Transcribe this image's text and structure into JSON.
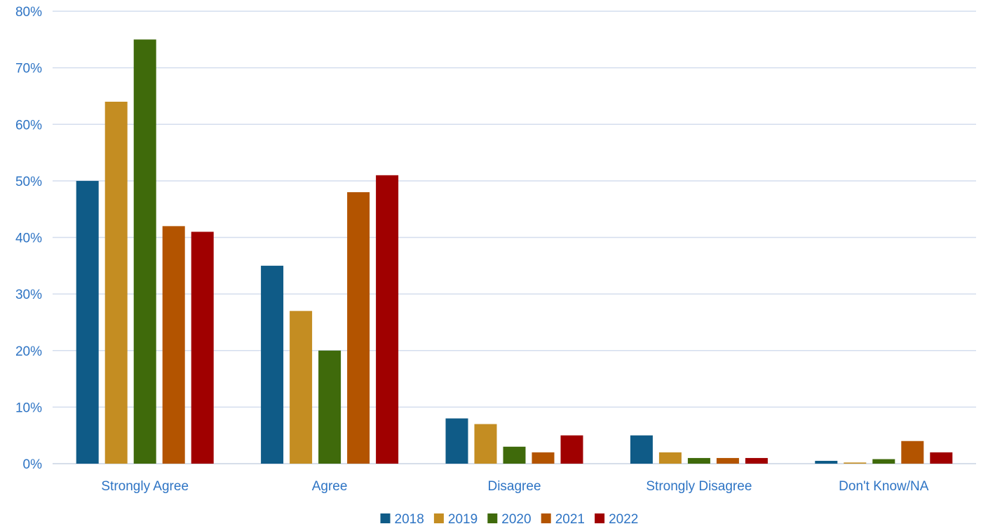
{
  "chart_data": {
    "type": "bar",
    "title": "",
    "xlabel": "",
    "ylabel": "",
    "categories": [
      "Strongly Agree",
      "Agree",
      "Disagree",
      "Strongly Disagree",
      "Don't Know/NA"
    ],
    "series": [
      {
        "name": "2018",
        "color": "#0f5b87",
        "values": [
          50,
          35,
          8,
          5,
          0.5
        ]
      },
      {
        "name": "2019",
        "color": "#c48d22",
        "values": [
          64,
          27,
          7,
          2,
          0.2
        ]
      },
      {
        "name": "2020",
        "color": "#3f6a0b",
        "values": [
          75,
          20,
          3,
          1,
          0.8
        ]
      },
      {
        "name": "2021",
        "color": "#b35400",
        "values": [
          42,
          48,
          2,
          1,
          4
        ]
      },
      {
        "name": "2022",
        "color": "#a00000",
        "values": [
          41,
          51,
          5,
          1,
          2
        ]
      }
    ],
    "ylim": [
      0,
      80
    ],
    "yticks": [
      0,
      10,
      20,
      30,
      40,
      50,
      60,
      70,
      80
    ],
    "ytick_format": "%",
    "grid": true,
    "legend_position": "bottom-center"
  }
}
